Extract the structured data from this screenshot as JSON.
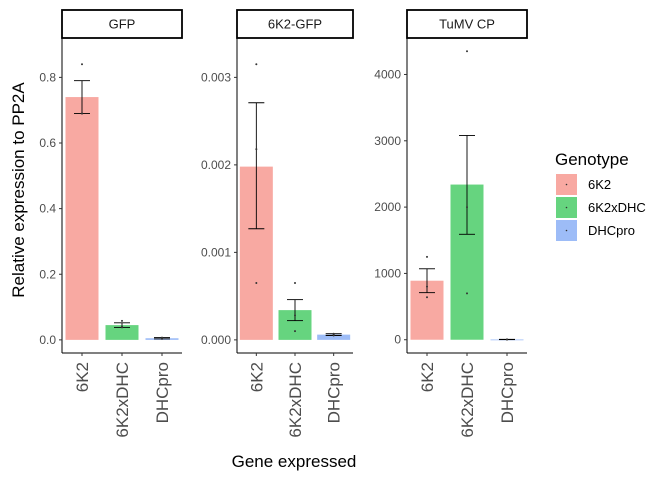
{
  "chart_data": {
    "type": "bar",
    "xlabel": "Gene expressed",
    "ylabel": "Relative expression to PP2A",
    "categories": [
      "6K2",
      "6K2xDHC",
      "DHCpro"
    ],
    "legend": {
      "title": "Genotype",
      "placement": "right",
      "entries": [
        {
          "name": "6K2",
          "color": "#F8A9A2"
        },
        {
          "name": "6K2xDHC",
          "color": "#66D47F"
        },
        {
          "name": "DHCpro",
          "color": "#9DBCF7"
        }
      ]
    },
    "grid": false,
    "panels": [
      {
        "title": "GFP",
        "ylim": [
          -0.04,
          0.92
        ],
        "yticks": [
          0.0,
          0.2,
          0.4,
          0.6,
          0.8
        ],
        "tick_labels": [
          "0.0",
          "0.2",
          "0.4",
          "0.6",
          "0.8"
        ],
        "values": [
          0.74,
          0.045,
          0.005
        ],
        "err_low": [
          0.69,
          0.038,
          0.003
        ],
        "err_high": [
          0.79,
          0.052,
          0.007
        ],
        "points": [
          [
            0.84,
            0.69,
            0.69
          ],
          [
            0.058,
            0.04,
            0.038
          ],
          [
            0.007,
            0.005,
            0.003
          ]
        ]
      },
      {
        "title": "6K2-GFP",
        "ylim": [
          -0.00015,
          0.00345
        ],
        "yticks": [
          0.0,
          0.001,
          0.002,
          0.003
        ],
        "tick_labels": [
          "0.000",
          "0.001",
          "0.002",
          "0.003"
        ],
        "values": [
          0.00198,
          0.00034,
          6e-05
        ],
        "err_low": [
          0.00127,
          0.00022,
          5e-05
        ],
        "err_high": [
          0.00271,
          0.00046,
          7e-05
        ],
        "points": [
          [
            0.00315,
            0.00218,
            0.00065
          ],
          [
            0.00065,
            0.00028,
            0.0001
          ],
          [
            7e-05,
            6e-05,
            5e-05
          ]
        ]
      },
      {
        "title": "TuMV CP",
        "ylim": [
          -200,
          4550
        ],
        "yticks": [
          0,
          1000,
          2000,
          3000,
          4000
        ],
        "tick_labels": [
          "0",
          "1000",
          "2000",
          "3000",
          "4000"
        ],
        "values": [
          890,
          2340,
          4
        ],
        "err_low": [
          710,
          1590,
          2
        ],
        "err_high": [
          1070,
          3080,
          6
        ],
        "points": [
          [
            1250,
            800,
            640
          ],
          [
            4350,
            2000,
            700
          ],
          [
            5,
            4,
            3
          ]
        ]
      }
    ]
  }
}
